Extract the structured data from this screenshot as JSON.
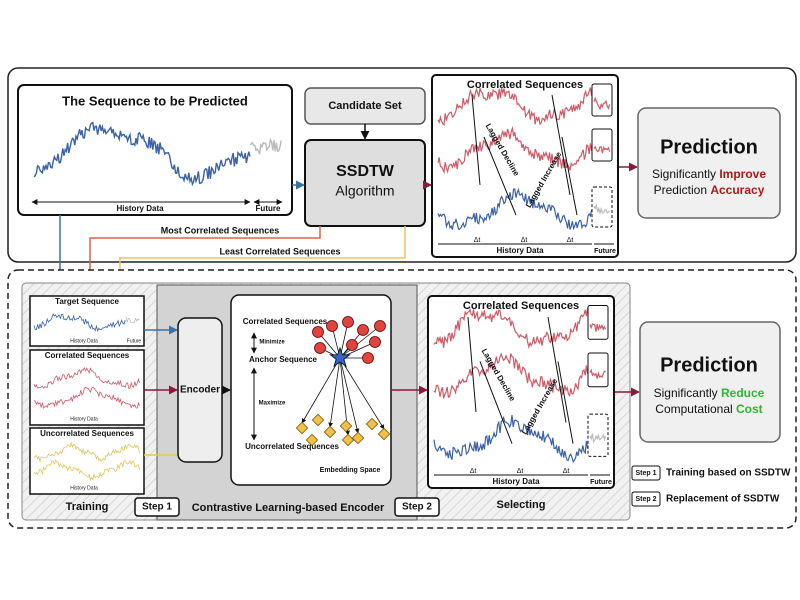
{
  "top": {
    "target": {
      "title": "The Sequence to be Predicted",
      "history": "History Data",
      "future": "Future"
    },
    "candidate_set": "Candidate Set",
    "algorithm": {
      "name": "SSDTW",
      "label": "Algorithm"
    },
    "correlated": {
      "title": "Correlated Sequences",
      "lagged_decline": "Lagged Decline",
      "lagged_increase": "Lagged Increase",
      "delta_t": [
        "Δt",
        "Δt",
        "Δt"
      ],
      "history": "History Data",
      "future": "Future"
    },
    "prediction": {
      "title": "Prediction",
      "line1": [
        "Significantly ",
        "Improve"
      ],
      "line2": [
        "Prediction ",
        "Accuracy"
      ]
    }
  },
  "links": {
    "most": "Most Correlated Sequences",
    "least": "Least Correlated Sequences"
  },
  "bottom": {
    "training": {
      "target": {
        "title": "Target Sequence",
        "history": "History Data",
        "future": "Future"
      },
      "correlated": {
        "title": "Correlated Sequences",
        "history": "History Data"
      },
      "uncorrelated": {
        "title": "Uncorrelated Sequences",
        "history": "History Data"
      },
      "label": "Training"
    },
    "step1": "Step 1",
    "encoder": "Encoder",
    "embedding": {
      "correlated": "Correlated Sequences",
      "minimize": "Minimize",
      "anchor": "Anchor Sequence",
      "maximize": "Maximize",
      "uncorrelated": "Uncorrelated Sequences",
      "space": "Embedding Space"
    },
    "encoder_label": "Contrastive Learning-based Encoder",
    "step2": "Step 2",
    "correlated": {
      "title": "Correlated Sequences",
      "lagged_decline": "Lagged Decline",
      "lagged_increase": "Lagged Increase",
      "delta_t": [
        "Δt",
        "Δt",
        "Δt"
      ],
      "history": "History Data",
      "future": "Future"
    },
    "selecting": "Selecting",
    "prediction": {
      "title": "Prediction",
      "line1": [
        "Significantly ",
        "Reduce"
      ],
      "line2": [
        "Computational ",
        "Cost"
      ]
    }
  },
  "legend": [
    {
      "step": "Step 1",
      "label": "Training based on SSDTW"
    },
    {
      "step": "Step 2",
      "label": "Replacement of SSDTW"
    }
  ]
}
